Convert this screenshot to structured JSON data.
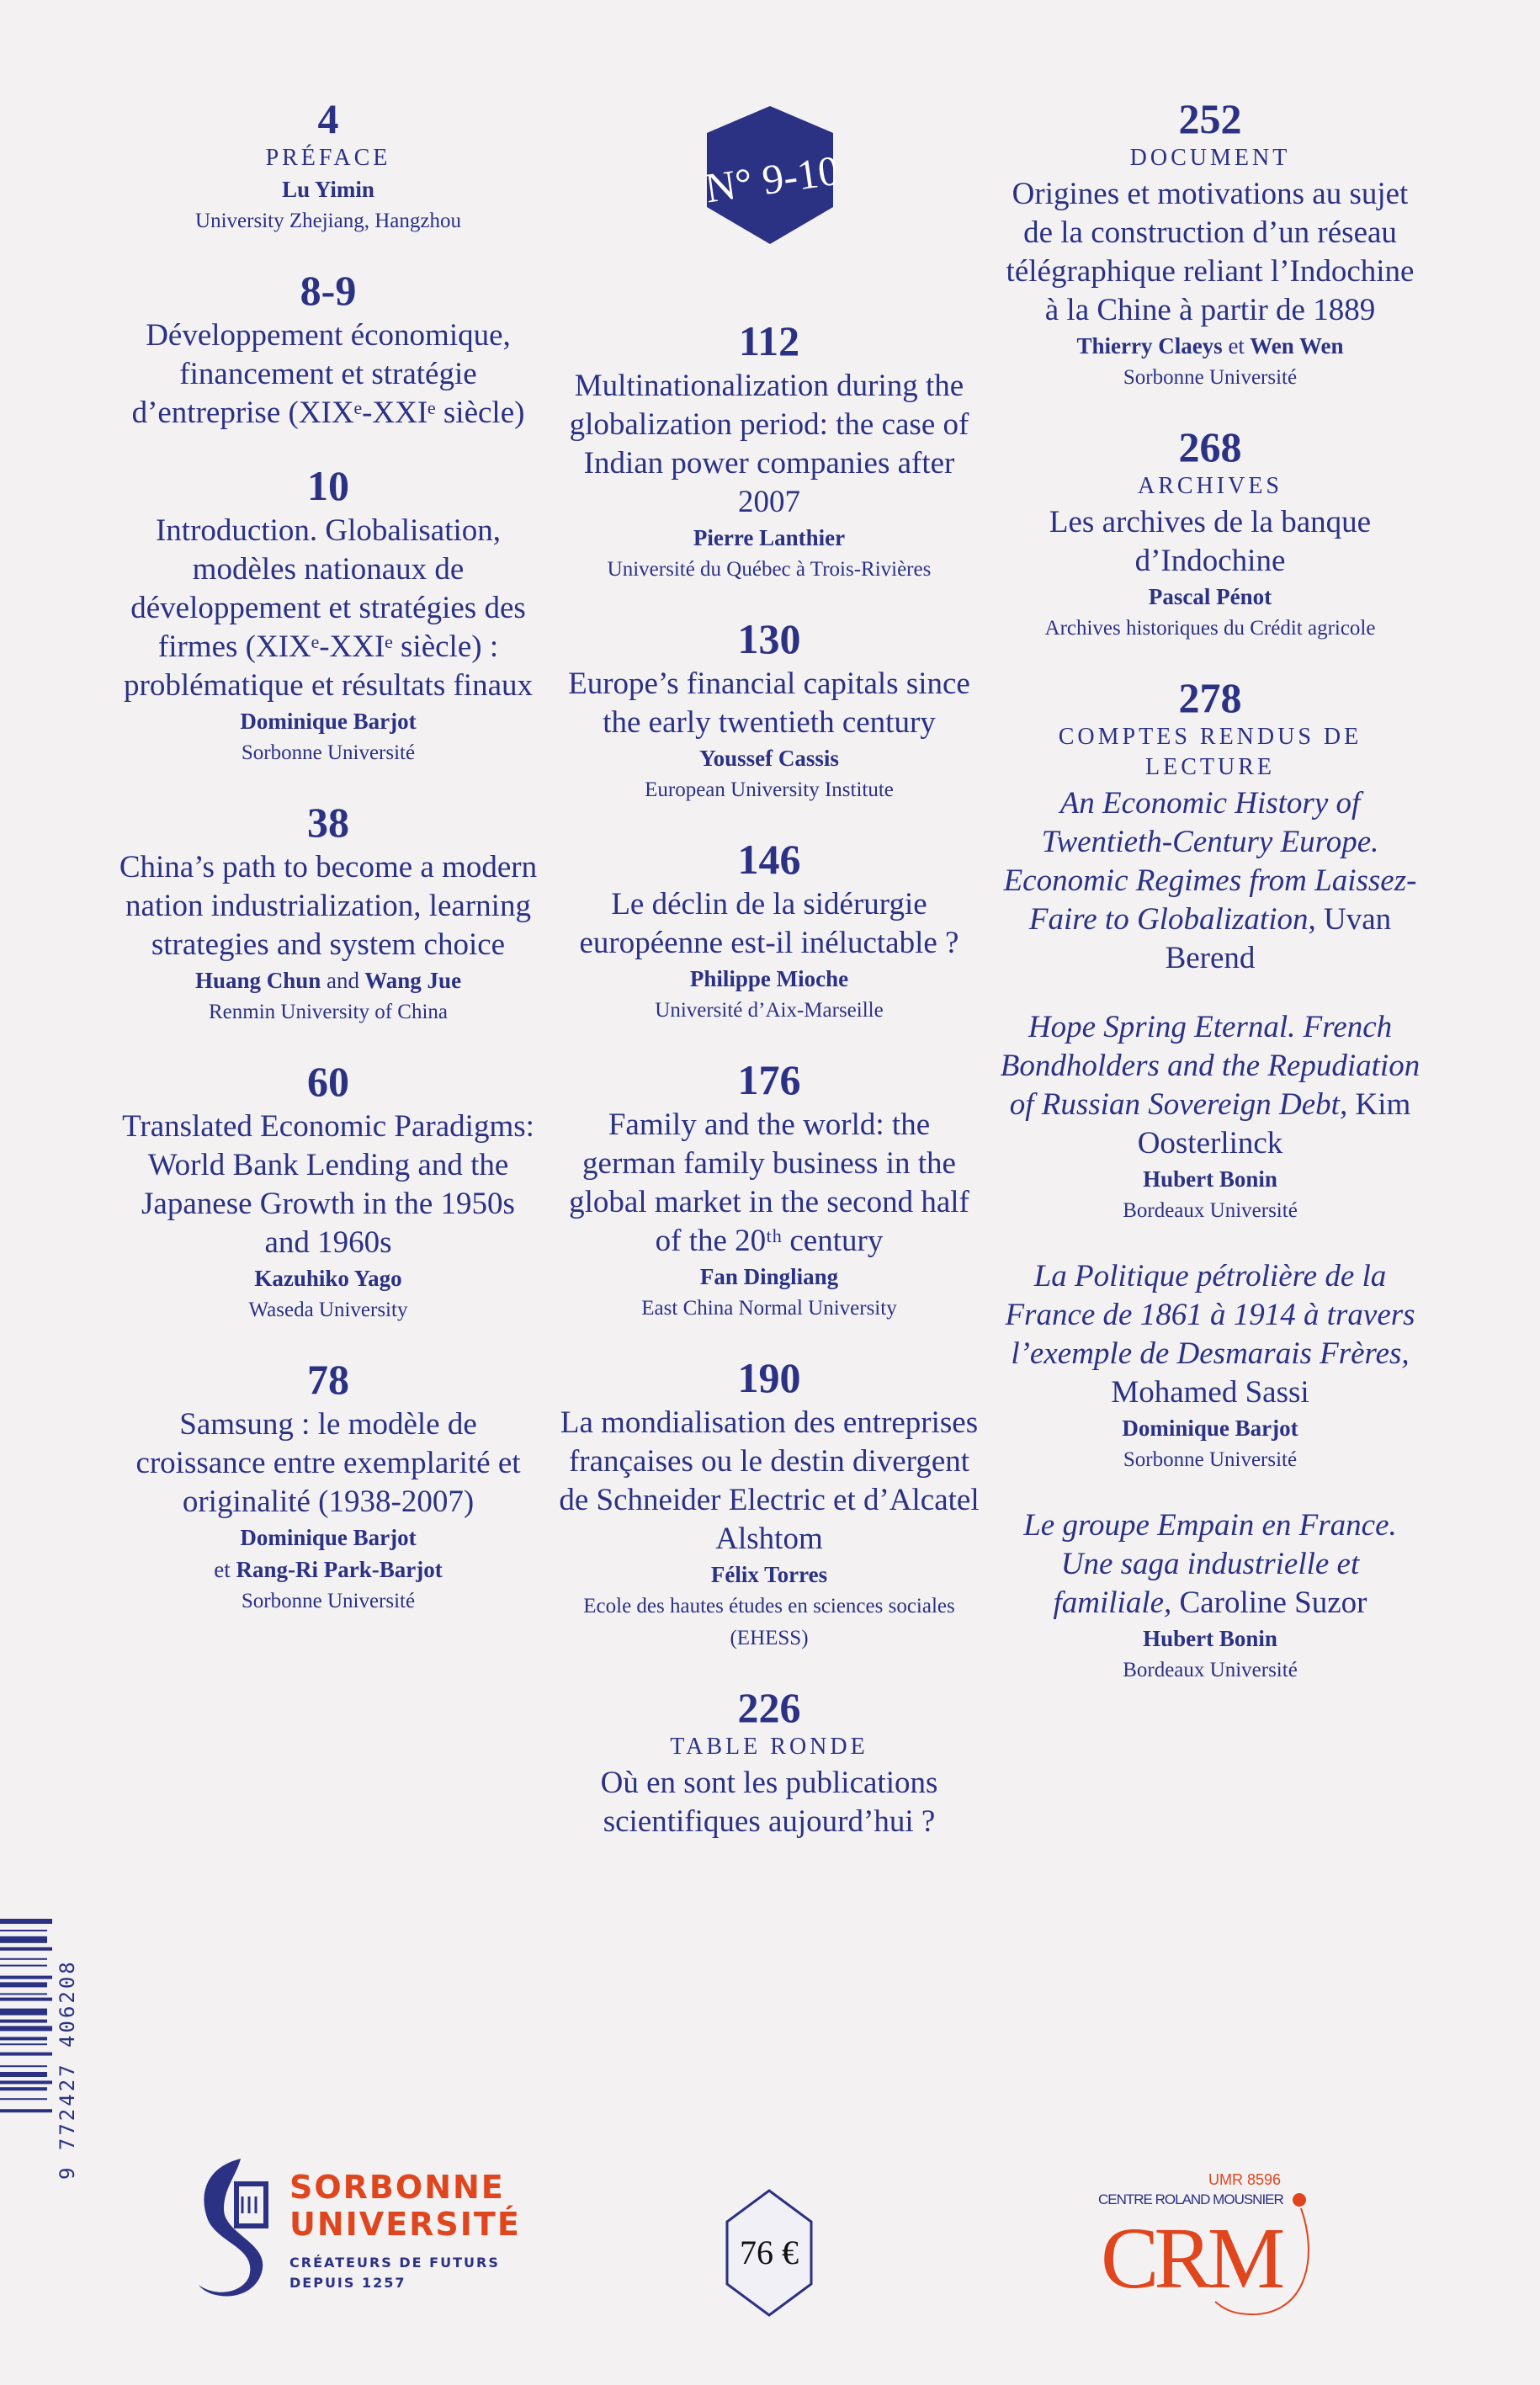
{
  "issue": {
    "label": "N° 9-10",
    "color": "#2b3183"
  },
  "left": [
    {
      "page": "4",
      "label": "PRÉFACE",
      "authors": [
        "Lu Yimin"
      ],
      "aff": "University Zhejiang, Hangzhou"
    },
    {
      "page": "8-9",
      "title": "Développement économique, financement et stratégie d’entreprise (XIXᵉ-XXIᵉ siècle)"
    },
    {
      "page": "10",
      "title": "Introduction. Globalisation, modèles nationaux de développement et stratégies des firmes (XIXᵉ-XXIᵉ siècle) : problématique et résultats finaux",
      "authors": [
        "Dominique Barjot"
      ],
      "aff": "Sorbonne Université"
    },
    {
      "page": "38",
      "title": "China’s path to become a modern nation industrialization, learning strategies and system choice",
      "authors": [
        "Huang Chun",
        "and",
        "Wang Jue"
      ],
      "aff": "Renmin University of China"
    },
    {
      "page": "60",
      "title": "Translated Economic Paradigms: World Bank Lending and the Japanese Growth in the 1950s and 1960s",
      "authors": [
        "Kazuhiko Yago"
      ],
      "aff": "Waseda University"
    },
    {
      "page": "78",
      "title": "Samsung : le modèle de croissance entre exemplarité et originalité (1938-2007)",
      "authors": [
        "Dominique Barjot"
      ],
      "authors2": [
        "et",
        "Rang-Ri Park-Barjot"
      ],
      "aff": "Sorbonne Université"
    }
  ],
  "middle": [
    {
      "page": "112",
      "title": "Multinationalization during the globalization period: the case of Indian power companies after 2007",
      "authors": [
        "Pierre Lanthier"
      ],
      "aff": "Université du Québec à Trois-Rivières"
    },
    {
      "page": "130",
      "title": "Europe’s financial capitals since the early twentieth century",
      "authors": [
        "Youssef Cassis"
      ],
      "aff": "European University Institute"
    },
    {
      "page": "146",
      "title": "Le déclin de la sidérurgie européenne est-il inéluctable ?",
      "authors": [
        "Philippe Mioche"
      ],
      "aff": "Université d’Aix-Marseille"
    },
    {
      "page": "176",
      "title": "Family and the world: the german family business in the global market in the second half of the 20ᵗʰ century",
      "authors": [
        "Fan Dingliang"
      ],
      "aff": "East China Normal University"
    },
    {
      "page": "190",
      "title": "La mondialisation des entreprises françaises ou le destin divergent de Schneider Electric et d’Alcatel Alshtom",
      "authors": [
        "Félix Torres"
      ],
      "aff": "Ecole des hautes études en sciences sociales (EHESS)"
    },
    {
      "page": "226",
      "label": "TABLE RONDE",
      "title": "Où en sont les publications scientifiques aujourd’hui ?"
    }
  ],
  "right": [
    {
      "page": "252",
      "label": "DOCUMENT",
      "title": "Origines et motivations au sujet de la construction d’un réseau télégraphique reliant l’Indochine à la Chine à partir de 1889",
      "authors": [
        "Thierry Claeys",
        "et",
        "Wen Wen"
      ],
      "aff": "Sorbonne Université"
    },
    {
      "page": "268",
      "label": "ARCHIVES",
      "title": "Les archives de la banque d’Indochine",
      "authors": [
        "Pascal Pénot"
      ],
      "aff": "Archives historiques du Crédit agricole"
    },
    {
      "page": "278",
      "label": "COMPTES RENDUS DE LECTURE",
      "title_it": "An Economic History of Twentieth-Century Europe. Economic Regimes from Laissez-Faire to Globalization,",
      "title_author": "Uvan Berend"
    },
    {
      "title_it": "Hope Spring Eternal. French Bondholders and the Repudiation of Russian Sovereign Debt,",
      "title_author": "Kim Oosterlinck",
      "authors": [
        "Hubert Bonin"
      ],
      "aff": "Bordeaux Université"
    },
    {
      "title_it": "La Politique pétrolière de la France de 1861 à 1914 à travers l’exemple de Desmarais Frères,",
      "title_author": "Mohamed Sassi",
      "authors": [
        "Dominique Barjot"
      ],
      "aff": "Sorbonne Université"
    },
    {
      "title_it": "Le groupe Empain en France. Une saga industrielle et familiale,",
      "title_author": "Caroline Suzor",
      "authors": [
        "Hubert Bonin"
      ],
      "aff": "Bordeaux Université"
    }
  ],
  "barcode": {
    "digits": "9 772427 406208"
  },
  "sorbonne_logo": {
    "name1": "SORBONNE",
    "name2": "UNIVERSITÉ",
    "tag1": "CRÉATEURS DE FUTURS",
    "tag2": "DEPUIS 1257",
    "color": "#e0461e"
  },
  "price": "76 €",
  "crm_logo": {
    "umr": "UMR 8596",
    "centre": "CENTRE ROLAND MOUSNIER",
    "abbr": "CRM",
    "color": "#e0461e"
  }
}
